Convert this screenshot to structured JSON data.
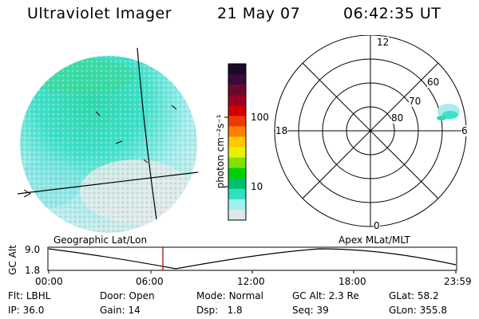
{
  "header": {
    "title": "Ultraviolet Imager",
    "date": "21 May 07",
    "time": "06:42:35 UT"
  },
  "colorbar": {
    "label": "photon cm⁻²s⁻¹",
    "ticks": [
      "100",
      "10"
    ],
    "colors": [
      "#1a0a2a",
      "#3a0a3a",
      "#6a0a2a",
      "#9a0020",
      "#d00000",
      "#ee3a00",
      "#ff8000",
      "#ffc800",
      "#e8f000",
      "#80e000",
      "#00d000",
      "#00c070",
      "#30e0c0",
      "#a0f0f0",
      "#dde8e8"
    ]
  },
  "polar": {
    "mlt_labels": {
      "top": "12",
      "left": "18",
      "right": "6",
      "bottom": "0"
    },
    "lat_labels": [
      "60",
      "70",
      "80"
    ]
  },
  "timeline": {
    "ylabel": "GC Alt",
    "yticks": [
      "9.0",
      "1.8"
    ],
    "left_title": "Geographic Lat/Lon",
    "right_title": "Apex MLat/MLT",
    "xticks": [
      "00:00",
      "06:00",
      "12:00",
      "18:00",
      "23:59"
    ]
  },
  "status": {
    "rows": [
      [
        {
          "label": "Flt:",
          "value": "LBHL"
        },
        {
          "label": "Door:",
          "value": "Open"
        },
        {
          "label": "Mode:",
          "value": "Normal"
        },
        {
          "label": "GC Alt:",
          "value": "2.3 Re"
        },
        {
          "label": "GLat:",
          "value": "58.2"
        }
      ],
      [
        {
          "label": "IP:",
          "value": "36.0"
        },
        {
          "label": "Gain:",
          "value": "14"
        },
        {
          "label": "Dsp:",
          "value": "1.8"
        },
        {
          "label": "Seq:",
          "value": "39"
        },
        {
          "label": "GLon:",
          "value": "355.8"
        }
      ]
    ]
  }
}
